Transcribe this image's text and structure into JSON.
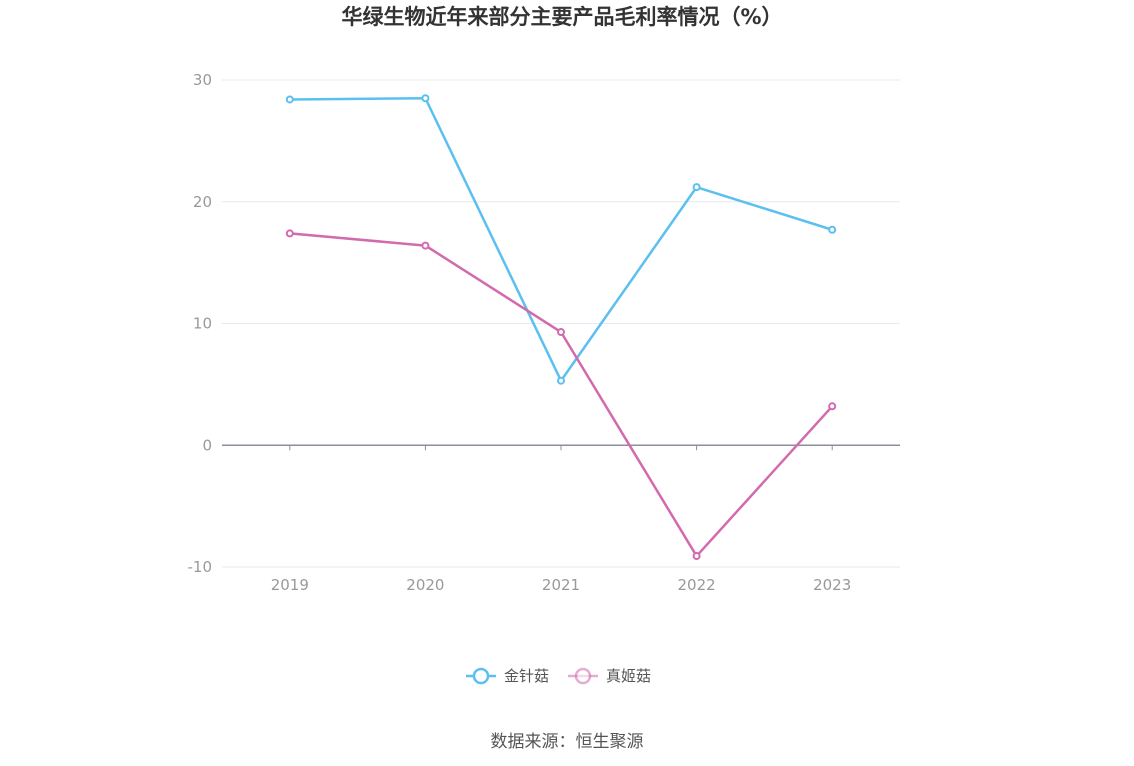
{
  "chart_data": {
    "type": "line",
    "title": "华绿生物近年来部分主要产品毛利率情况（%）",
    "categories": [
      "2019",
      "2020",
      "2021",
      "2022",
      "2023"
    ],
    "ylim": [
      -10,
      30
    ],
    "yticks": [
      -10,
      0,
      10,
      20,
      30
    ],
    "grid": true,
    "legend_position": "bottom-center",
    "series": [
      {
        "name": "金针菇",
        "values": [
          28.4,
          28.5,
          5.3,
          21.2,
          17.7
        ],
        "color": "#5bc0f0"
      },
      {
        "name": "真姬菇",
        "values": [
          17.4,
          16.4,
          9.3,
          -9.1,
          3.2
        ],
        "color": "#d36aad"
      }
    ]
  },
  "footer": {
    "source": "数据来源：恒生聚源"
  }
}
